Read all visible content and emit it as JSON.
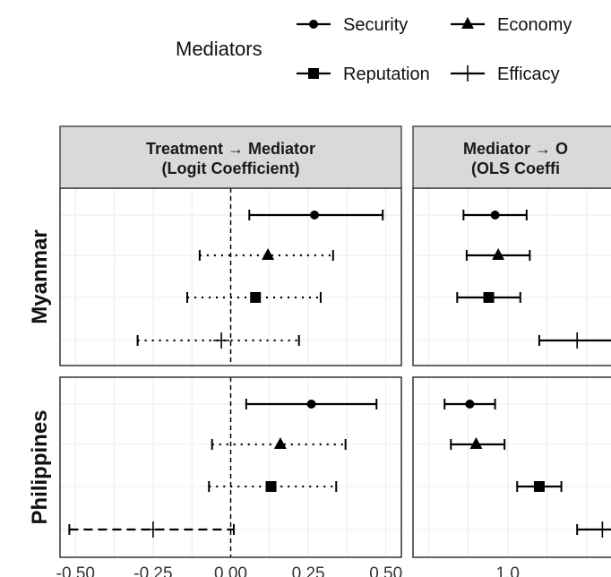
{
  "chart_data": {
    "type": "scatter",
    "legend": {
      "title": "Mediators",
      "placement": "top",
      "items": [
        {
          "name": "Security",
          "shape": "circle"
        },
        {
          "name": "Economy",
          "shape": "triangle"
        },
        {
          "name": "Reputation",
          "shape": "square"
        },
        {
          "name": "Efficacy",
          "shape": "cross"
        }
      ]
    },
    "columns": [
      {
        "label_line1": "Treatment → Mediator",
        "label_line2": "(Logit Coefficient)"
      },
      {
        "label_line1": "Mediator → O",
        "label_line2": "(OLS Coeffi"
      }
    ],
    "rows": [
      "Myanmar",
      "Philippines"
    ],
    "x_ticks_left": [
      "-0.50",
      "-0.25",
      "0.00",
      "0.25",
      "0.50"
    ],
    "x_ticks_right": [
      "1.0"
    ],
    "left_xlim": [
      -0.55,
      0.55
    ],
    "right_xlim": [
      0.7,
      1.35
    ],
    "reference_line_x": 0,
    "grid": true,
    "facets": [
      {
        "row": "Myanmar",
        "col": 0,
        "points": [
          {
            "mediator": "Security",
            "est": 0.27,
            "lo": 0.06,
            "hi": 0.49,
            "line": "solid"
          },
          {
            "mediator": "Economy",
            "est": 0.12,
            "lo": -0.1,
            "hi": 0.33,
            "line": "dotted"
          },
          {
            "mediator": "Reputation",
            "est": 0.08,
            "lo": -0.14,
            "hi": 0.29,
            "line": "dotted"
          },
          {
            "mediator": "Efficacy",
            "est": -0.03,
            "lo": -0.3,
            "hi": 0.22,
            "line": "dotted"
          }
        ]
      },
      {
        "row": "Philippines",
        "col": 0,
        "points": [
          {
            "mediator": "Security",
            "est": 0.26,
            "lo": 0.05,
            "hi": 0.47,
            "line": "solid"
          },
          {
            "mediator": "Economy",
            "est": 0.16,
            "lo": -0.06,
            "hi": 0.37,
            "line": "dotted"
          },
          {
            "mediator": "Reputation",
            "est": 0.13,
            "lo": -0.07,
            "hi": 0.34,
            "line": "dotted"
          },
          {
            "mediator": "Efficacy",
            "est": -0.25,
            "lo": -0.52,
            "hi": 0.01,
            "line": "dashed"
          }
        ]
      },
      {
        "row": "Myanmar",
        "col": 1,
        "points": [
          {
            "mediator": "Security",
            "est": 0.96,
            "lo": 0.86,
            "hi": 1.06,
            "line": "solid"
          },
          {
            "mediator": "Economy",
            "est": 0.97,
            "lo": 0.87,
            "hi": 1.07,
            "line": "solid"
          },
          {
            "mediator": "Reputation",
            "est": 0.94,
            "lo": 0.84,
            "hi": 1.04,
            "line": "solid"
          },
          {
            "mediator": "Efficacy",
            "est": 1.22,
            "lo": 1.1,
            "hi": 1.36,
            "line": "solid"
          }
        ]
      },
      {
        "row": "Philippines",
        "col": 1,
        "points": [
          {
            "mediator": "Security",
            "est": 0.88,
            "lo": 0.8,
            "hi": 0.96,
            "line": "solid"
          },
          {
            "mediator": "Economy",
            "est": 0.9,
            "lo": 0.82,
            "hi": 0.99,
            "line": "solid"
          },
          {
            "mediator": "Reputation",
            "est": 1.1,
            "lo": 1.03,
            "hi": 1.17,
            "line": "solid"
          },
          {
            "mediator": "Efficacy",
            "est": 1.3,
            "lo": 1.22,
            "hi": 1.38,
            "line": "solid"
          }
        ]
      }
    ]
  }
}
